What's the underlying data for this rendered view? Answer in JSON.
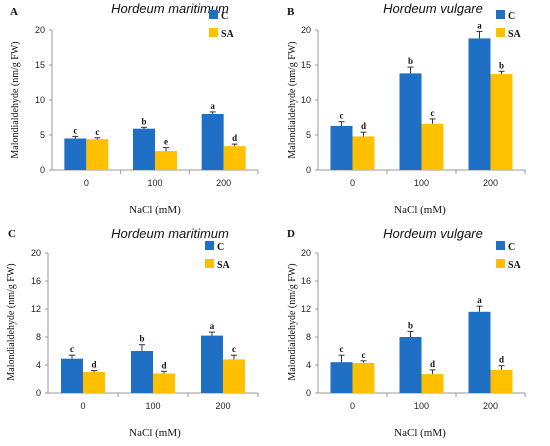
{
  "colors": {
    "C": "#1f6fc5",
    "SA": "#ffc000",
    "axis": "#9a9a9a",
    "error": "#333333"
  },
  "chart_data": [
    {
      "type": "bar",
      "panel_label": "A",
      "title": "Hordeum maritimum",
      "xlabel": "NaCl (mM)",
      "ylabel": "Malondialdehyde (nm/g FW)",
      "ylim": [
        0,
        20
      ],
      "yticks": [
        "0",
        "5",
        "10",
        "15",
        "20"
      ],
      "categories": [
        "0",
        "100",
        "200"
      ],
      "legend_position": "top-right",
      "series": [
        {
          "name": "C",
          "values": [
            4.5,
            5.9,
            8.0
          ],
          "errors": [
            0.3,
            0.2,
            0.3
          ],
          "sig": [
            "c",
            "b",
            "a"
          ]
        },
        {
          "name": "SA",
          "values": [
            4.4,
            2.7,
            3.4
          ],
          "errors": [
            0.2,
            0.5,
            0.3
          ],
          "sig": [
            "c",
            "e",
            "d"
          ]
        }
      ]
    },
    {
      "type": "bar",
      "panel_label": "B",
      "title": "Hordeum vulgare",
      "xlabel": "NaCl (mM)",
      "ylabel": "Malondialdehyde (nm/g FW)",
      "ylim": [
        0,
        20
      ],
      "yticks": [
        "0",
        "5",
        "10",
        "15",
        "20"
      ],
      "categories": [
        "0",
        "100",
        "200"
      ],
      "legend_position": "top-right",
      "series": [
        {
          "name": "C",
          "values": [
            6.3,
            13.8,
            18.8
          ],
          "errors": [
            0.6,
            0.9,
            1.0
          ],
          "sig": [
            "c",
            "b",
            "a"
          ]
        },
        {
          "name": "SA",
          "values": [
            4.8,
            6.6,
            13.7
          ],
          "errors": [
            0.6,
            0.7,
            0.4
          ],
          "sig": [
            "d",
            "c",
            "b"
          ]
        }
      ]
    },
    {
      "type": "bar",
      "panel_label": "C",
      "title": "Hordeum maritimum",
      "xlabel": "NaCl (mM)",
      "ylabel": "Malondialdehyde (nm/g FW)",
      "ylim": [
        0,
        20
      ],
      "yticks": [
        "0",
        "4",
        "8",
        "12",
        "16",
        "20"
      ],
      "categories": [
        "0",
        "100",
        "200"
      ],
      "legend_position": "top-right",
      "series": [
        {
          "name": "C",
          "values": [
            4.9,
            6.0,
            8.2
          ],
          "errors": [
            0.5,
            0.9,
            0.5
          ],
          "sig": [
            "c",
            "b",
            "a"
          ]
        },
        {
          "name": "SA",
          "values": [
            3.0,
            2.8,
            4.8
          ],
          "errors": [
            0.2,
            0.3,
            0.6
          ],
          "sig": [
            "d",
            "d",
            "c"
          ]
        }
      ]
    },
    {
      "type": "bar",
      "panel_label": "D",
      "title": "Hordeum vulgare",
      "xlabel": "NaCl (mM)",
      "ylabel": "Malondialdehyde (nm/g FW)",
      "ylim": [
        0,
        20
      ],
      "yticks": [
        "0",
        "4",
        "8",
        "12",
        "16",
        "20"
      ],
      "categories": [
        "0",
        "100",
        "200"
      ],
      "legend_position": "top-right",
      "series": [
        {
          "name": "C",
          "values": [
            4.4,
            8.0,
            11.6
          ],
          "errors": [
            1.0,
            0.8,
            0.8
          ],
          "sig": [
            "c",
            "b",
            "a"
          ]
        },
        {
          "name": "SA",
          "values": [
            4.3,
            2.7,
            3.3
          ],
          "errors": [
            0.3,
            0.6,
            0.6
          ],
          "sig": [
            "c",
            "d",
            "d"
          ]
        }
      ]
    }
  ]
}
